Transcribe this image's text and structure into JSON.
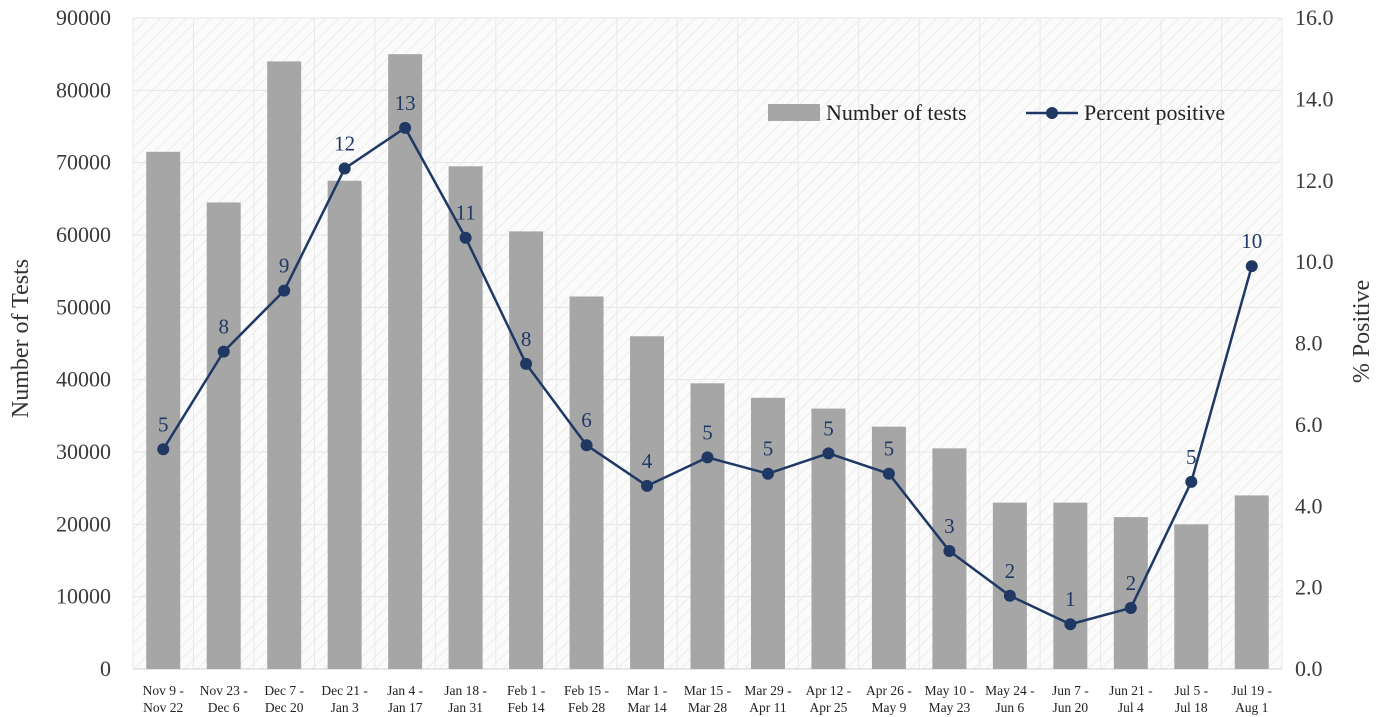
{
  "chart_data": {
    "type": "bar",
    "categories": [
      [
        "Nov 9 -",
        "Nov 22"
      ],
      [
        "Nov 23 -",
        "Dec 6"
      ],
      [
        "Dec 7 -",
        "Dec 20"
      ],
      [
        "Dec 21 -",
        "Jan 3"
      ],
      [
        "Jan 4 -",
        "Jan 17"
      ],
      [
        "Jan 18 -",
        "Jan 31"
      ],
      [
        "Feb 1 -",
        "Feb 14"
      ],
      [
        "Feb 15 -",
        "Feb 28"
      ],
      [
        "Mar 1 -",
        "Mar 14"
      ],
      [
        "Mar 15 -",
        "Mar 28"
      ],
      [
        "Mar 29 -",
        "Apr 11"
      ],
      [
        "Apr 12 -",
        "Apr 25"
      ],
      [
        "Apr 26 -",
        "May 9"
      ],
      [
        "May 10 -",
        "May 23"
      ],
      [
        "May 24 -",
        "Jun 6"
      ],
      [
        "Jun 7 -",
        "Jun 20"
      ],
      [
        "Jun 21 -",
        "Jul 4"
      ],
      [
        "Jul 5 -",
        "Jul 18"
      ],
      [
        "Jul 19 -",
        "Aug 1"
      ]
    ],
    "series": [
      {
        "name": "Number of tests",
        "type": "bar",
        "axis": "left",
        "color": "#a6a6a6",
        "values": [
          71500,
          64500,
          84000,
          67500,
          85000,
          69500,
          60500,
          51500,
          46000,
          39500,
          37500,
          36000,
          33500,
          30500,
          23000,
          23000,
          21000,
          20000,
          24000
        ]
      },
      {
        "name": "Percent positive",
        "type": "line",
        "axis": "right",
        "color": "#1f3864",
        "values": [
          5.4,
          7.8,
          9.3,
          12.3,
          13.3,
          10.6,
          7.5,
          5.5,
          4.5,
          5.2,
          4.8,
          5.3,
          4.8,
          2.9,
          1.8,
          1.1,
          1.5,
          4.6,
          9.9
        ],
        "labels": [
          "5",
          "8",
          "9",
          "12",
          "13",
          "11",
          "8",
          "6",
          "4",
          "5",
          "5",
          "5",
          "5",
          "3",
          "2",
          "1",
          "2",
          "5",
          "10"
        ]
      }
    ],
    "y_left": {
      "label": "Number of Tests",
      "lim": [
        0,
        90000
      ],
      "ticks": [
        "0",
        "10000",
        "20000",
        "30000",
        "40000",
        "50000",
        "60000",
        "70000",
        "80000",
        "90000"
      ]
    },
    "y_right": {
      "label": "% Positive",
      "lim": [
        0,
        16
      ],
      "ticks": [
        "0.0",
        "2.0",
        "4.0",
        "6.0",
        "8.0",
        "10.0",
        "12.0",
        "14.0",
        "16.0"
      ]
    },
    "grid": true,
    "legend_position": "top-right",
    "legend": [
      "Number of tests",
      "Percent positive"
    ]
  }
}
